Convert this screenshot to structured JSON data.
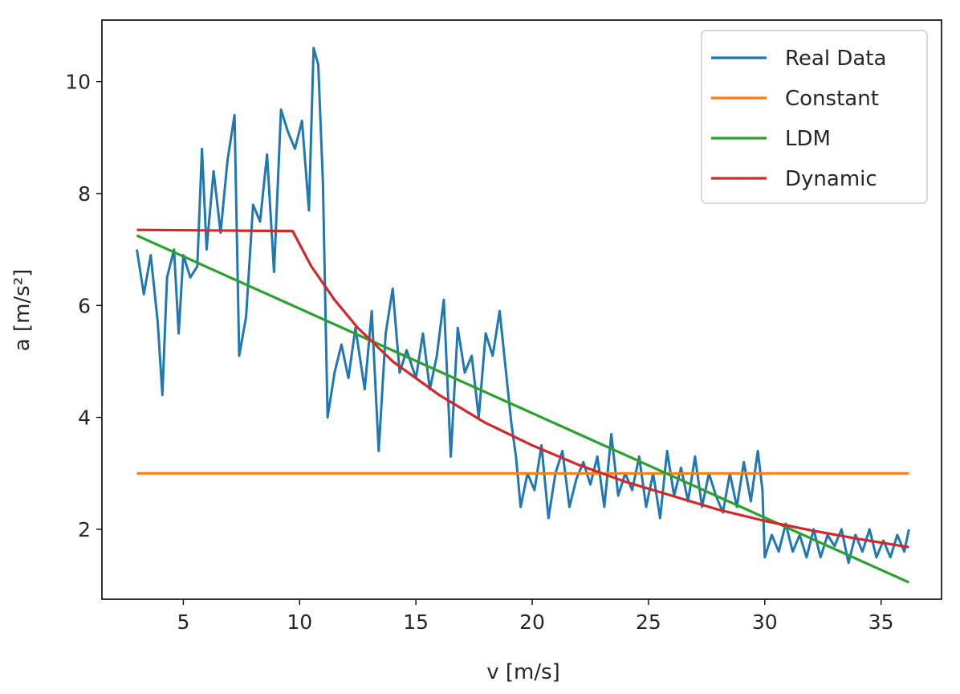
{
  "chart_data": {
    "type": "line",
    "title": "",
    "xlabel": "v [m/s]",
    "ylabel": "a [m/s²]",
    "xlim": [
      1.5,
      37.6
    ],
    "ylim": [
      0.75,
      11.1
    ],
    "xticks": [
      5,
      10,
      15,
      20,
      25,
      30,
      35
    ],
    "yticks": [
      2,
      4,
      6,
      8,
      10
    ],
    "grid": false,
    "legend_position": "top-right",
    "series": [
      {
        "name": "Real Data",
        "color": "#1f77b4",
        "style": "noisy",
        "points": [
          [
            3.0,
            7.0
          ],
          [
            3.3,
            6.2
          ],
          [
            3.6,
            6.9
          ],
          [
            3.9,
            5.7
          ],
          [
            4.1,
            4.4
          ],
          [
            4.3,
            6.5
          ],
          [
            4.6,
            7.0
          ],
          [
            4.8,
            5.5
          ],
          [
            5.0,
            6.9
          ],
          [
            5.3,
            6.5
          ],
          [
            5.6,
            6.7
          ],
          [
            5.8,
            8.8
          ],
          [
            6.0,
            7.0
          ],
          [
            6.3,
            8.4
          ],
          [
            6.6,
            7.3
          ],
          [
            6.9,
            8.6
          ],
          [
            7.2,
            9.4
          ],
          [
            7.4,
            5.1
          ],
          [
            7.7,
            5.8
          ],
          [
            8.0,
            7.8
          ],
          [
            8.3,
            7.5
          ],
          [
            8.6,
            8.7
          ],
          [
            8.9,
            6.6
          ],
          [
            9.2,
            9.5
          ],
          [
            9.5,
            9.1
          ],
          [
            9.8,
            8.8
          ],
          [
            10.1,
            9.3
          ],
          [
            10.4,
            7.7
          ],
          [
            10.6,
            10.6
          ],
          [
            10.8,
            10.3
          ],
          [
            11.0,
            8.2
          ],
          [
            11.2,
            4.0
          ],
          [
            11.5,
            4.8
          ],
          [
            11.8,
            5.3
          ],
          [
            12.1,
            4.7
          ],
          [
            12.4,
            5.6
          ],
          [
            12.8,
            4.5
          ],
          [
            13.1,
            5.9
          ],
          [
            13.4,
            3.4
          ],
          [
            13.7,
            5.5
          ],
          [
            14.0,
            6.3
          ],
          [
            14.3,
            4.8
          ],
          [
            14.6,
            5.2
          ],
          [
            15.0,
            4.7
          ],
          [
            15.3,
            5.5
          ],
          [
            15.6,
            4.5
          ],
          [
            15.9,
            5.1
          ],
          [
            16.2,
            6.1
          ],
          [
            16.5,
            3.3
          ],
          [
            16.8,
            5.6
          ],
          [
            17.1,
            4.8
          ],
          [
            17.4,
            5.1
          ],
          [
            17.7,
            4.0
          ],
          [
            18.0,
            5.5
          ],
          [
            18.3,
            5.1
          ],
          [
            18.6,
            5.9
          ],
          [
            18.9,
            4.7
          ],
          [
            19.1,
            3.9
          ],
          [
            19.3,
            3.3
          ],
          [
            19.5,
            2.4
          ],
          [
            19.8,
            3.0
          ],
          [
            20.1,
            2.7
          ],
          [
            20.4,
            3.5
          ],
          [
            20.7,
            2.2
          ],
          [
            21.0,
            3.0
          ],
          [
            21.3,
            3.4
          ],
          [
            21.6,
            2.4
          ],
          [
            21.9,
            2.9
          ],
          [
            22.2,
            3.2
          ],
          [
            22.5,
            2.8
          ],
          [
            22.8,
            3.3
          ],
          [
            23.1,
            2.4
          ],
          [
            23.4,
            3.7
          ],
          [
            23.7,
            2.6
          ],
          [
            24.0,
            3.0
          ],
          [
            24.3,
            2.7
          ],
          [
            24.6,
            3.3
          ],
          [
            24.9,
            2.4
          ],
          [
            25.2,
            3.0
          ],
          [
            25.5,
            2.2
          ],
          [
            25.8,
            3.4
          ],
          [
            26.1,
            2.6
          ],
          [
            26.4,
            3.1
          ],
          [
            26.7,
            2.5
          ],
          [
            27.0,
            3.3
          ],
          [
            27.3,
            2.4
          ],
          [
            27.6,
            3.0
          ],
          [
            27.9,
            2.6
          ],
          [
            28.2,
            2.3
          ],
          [
            28.5,
            3.0
          ],
          [
            28.8,
            2.4
          ],
          [
            29.1,
            3.2
          ],
          [
            29.4,
            2.5
          ],
          [
            29.7,
            3.4
          ],
          [
            29.9,
            2.7
          ],
          [
            30.0,
            1.5
          ],
          [
            30.3,
            1.9
          ],
          [
            30.6,
            1.6
          ],
          [
            30.9,
            2.1
          ],
          [
            31.2,
            1.6
          ],
          [
            31.5,
            1.9
          ],
          [
            31.8,
            1.5
          ],
          [
            32.1,
            2.0
          ],
          [
            32.4,
            1.5
          ],
          [
            32.7,
            1.9
          ],
          [
            33.0,
            1.7
          ],
          [
            33.3,
            2.0
          ],
          [
            33.6,
            1.4
          ],
          [
            33.9,
            1.9
          ],
          [
            34.2,
            1.6
          ],
          [
            34.5,
            2.0
          ],
          [
            34.8,
            1.5
          ],
          [
            35.1,
            1.8
          ],
          [
            35.4,
            1.5
          ],
          [
            35.7,
            1.9
          ],
          [
            36.0,
            1.6
          ],
          [
            36.2,
            2.0
          ]
        ]
      },
      {
        "name": "Constant",
        "color": "#ff7f0e",
        "style": "smooth",
        "points": [
          [
            3.0,
            3.0
          ],
          [
            36.2,
            3.0
          ]
        ]
      },
      {
        "name": "LDM",
        "color": "#2ca02c",
        "style": "smooth",
        "points": [
          [
            3.0,
            7.25
          ],
          [
            36.2,
            1.05
          ]
        ]
      },
      {
        "name": "Dynamic",
        "color": "#d62728",
        "style": "smooth",
        "points": [
          [
            3.0,
            7.35
          ],
          [
            9.7,
            7.33
          ],
          [
            10.5,
            6.7
          ],
          [
            11.5,
            6.1
          ],
          [
            12.5,
            5.6
          ],
          [
            14.0,
            5.0
          ],
          [
            16.0,
            4.4
          ],
          [
            18.0,
            3.9
          ],
          [
            20.0,
            3.5
          ],
          [
            22.0,
            3.15
          ],
          [
            24.0,
            2.85
          ],
          [
            26.0,
            2.6
          ],
          [
            28.0,
            2.35
          ],
          [
            30.0,
            2.15
          ],
          [
            32.0,
            1.98
          ],
          [
            34.0,
            1.83
          ],
          [
            36.2,
            1.68
          ]
        ]
      }
    ]
  }
}
